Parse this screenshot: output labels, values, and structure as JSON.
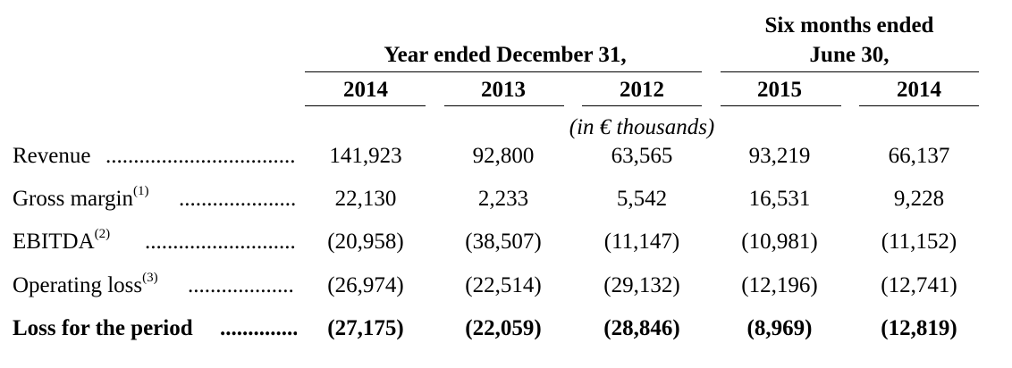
{
  "header": {
    "group_year": "Year ended December 31,",
    "group_six_line1": "Six months ended",
    "group_six_line2": "June 30,",
    "columns": [
      "2014",
      "2013",
      "2012",
      "2015",
      "2014"
    ],
    "units": "(in € thousands)"
  },
  "rows": [
    {
      "label": "Revenue",
      "sup": "",
      "values": [
        "141,923",
        "92,800",
        "63,565",
        "93,219",
        "66,137"
      ]
    },
    {
      "label": "Gross margin",
      "sup": "(1)",
      "values": [
        "22,130",
        "2,233",
        "5,542",
        "16,531",
        "9,228"
      ]
    },
    {
      "label": "EBITDA",
      "sup": "(2)",
      "values": [
        "(20,958)",
        "(38,507)",
        "(11,147)",
        "(10,981)",
        "(11,152)"
      ]
    },
    {
      "label": "Operating loss",
      "sup": "(3)",
      "values": [
        "(26,974)",
        "(22,514)",
        "(29,132)",
        "(12,196)",
        "(12,741)"
      ]
    },
    {
      "label": "Loss for the period",
      "sup": "",
      "values": [
        "(27,175)",
        "(22,059)",
        "(28,846)",
        "(8,969)",
        "(12,819)"
      ]
    }
  ]
}
